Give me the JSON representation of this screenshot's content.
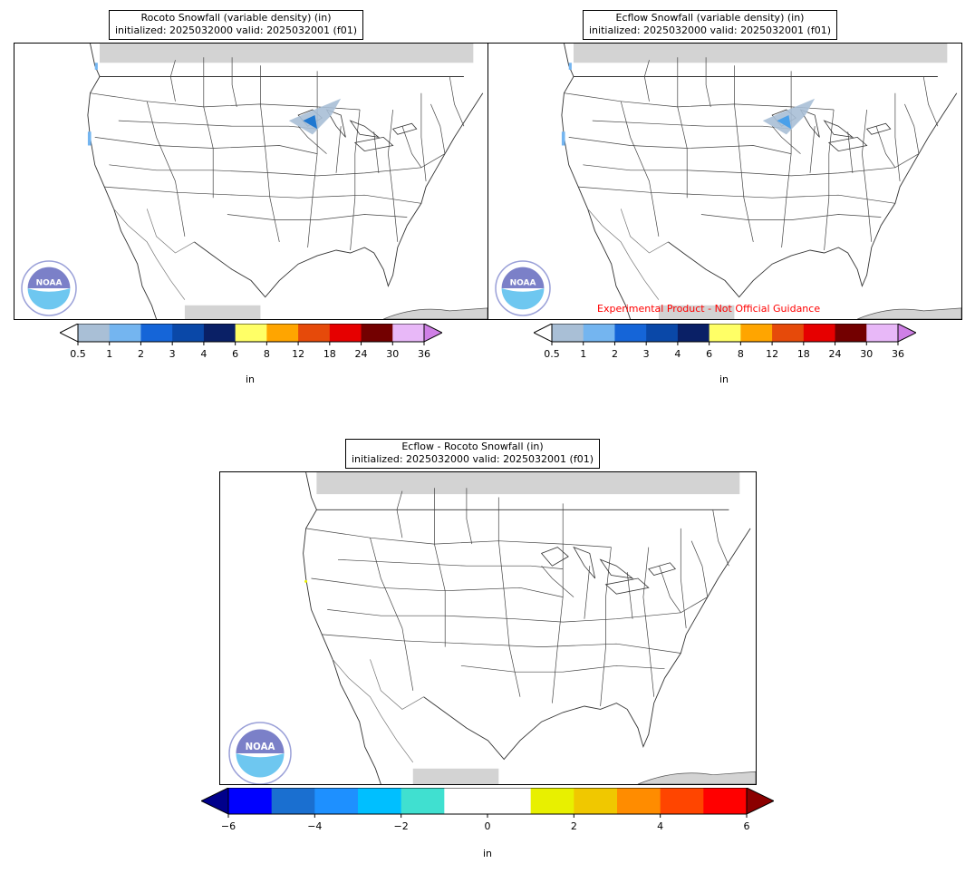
{
  "panels": [
    {
      "title_line1": "Rocoto Snowfall (variable density) (in)",
      "title_line2": "initialized: 2025032000 valid: 2025032001 (f01)",
      "colorbar": {
        "unit": "in",
        "ticks": [
          "0.5",
          "1",
          "2",
          "3",
          "4",
          "6",
          "8",
          "12",
          "18",
          "24",
          "30",
          "36"
        ],
        "colors": [
          "#a9bfd6",
          "#74b5f0",
          "#1565d8",
          "#0a48a8",
          "#0a2066",
          "#ffff66",
          "#ffa500",
          "#e64a0a",
          "#e60000",
          "#730000",
          "#e8b8f8"
        ],
        "under_color": "#ffffff",
        "over_color": "#cf7fe6"
      },
      "snow_color": "#1f78d1"
    },
    {
      "title_line1": "Ecflow Snowfall (variable density) (in)",
      "title_line2": "initialized: 2025032000 valid: 2025032001 (f01)",
      "disclaimer": "Experimental Product - Not Official Guidance",
      "colorbar": {
        "unit": "in",
        "ticks": [
          "0.5",
          "1",
          "2",
          "3",
          "4",
          "6",
          "8",
          "12",
          "18",
          "24",
          "30",
          "36"
        ],
        "colors": [
          "#a9bfd6",
          "#74b5f0",
          "#1565d8",
          "#0a48a8",
          "#0a2066",
          "#ffff66",
          "#ffa500",
          "#e64a0a",
          "#e60000",
          "#730000",
          "#e8b8f8"
        ],
        "under_color": "#ffffff",
        "over_color": "#cf7fe6"
      },
      "snow_color": "#4aa0ea"
    },
    {
      "title_line1": "Ecflow - Rocoto Snowfall (in)",
      "title_line2": "initialized: 2025032000 valid: 2025032001 (f01)",
      "colorbar": {
        "unit": "in",
        "ticks": [
          "−6",
          "−4",
          "−2",
          "0",
          "2",
          "4",
          "6"
        ],
        "colors": [
          "#0000ff",
          "#1a6fd0",
          "#1e90ff",
          "#00bfff",
          "#40e0d0",
          "#ffffff",
          "#ffffff",
          "#e8f000",
          "#f0c800",
          "#ff8c00",
          "#ff4500",
          "#ff0000"
        ],
        "under_color": "#00008b",
        "over_color": "#8b0000"
      }
    }
  ],
  "logo": {
    "text": "NOAA"
  }
}
